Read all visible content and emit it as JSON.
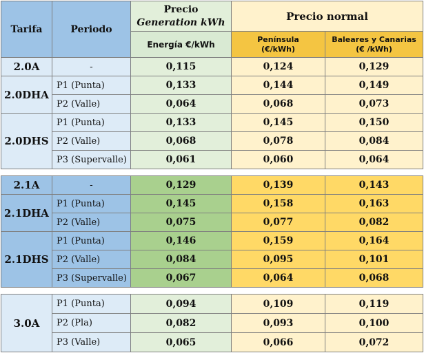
{
  "header": {
    "tarifa": "Tarifa",
    "periodo": "Periodo",
    "precio_gen_line1": "Precio",
    "precio_gen_line2": "Generation kWh",
    "energia": "Energía €/kWh",
    "precio_normal": "Precio normal",
    "peninsula_line1": "Península",
    "peninsula_line2": "(€/kWh)",
    "baleares_line1": "Baleares y Canarias",
    "baleares_line2": "(€ /kWh)"
  },
  "groups": [
    {
      "rows": [
        {
          "tarifa": "2.0A",
          "periodo": "-",
          "gen": "0,115",
          "pen": "0,124",
          "bal": "0,129"
        },
        {
          "tarifa": "2.0DHA",
          "periodo": "P1 (Punta)",
          "gen": "0,133",
          "pen": "0,144",
          "bal": "0,149"
        },
        {
          "tarifa": "",
          "periodo": "P2 (Valle)",
          "gen": "0,064",
          "pen": "0,068",
          "bal": "0,073"
        },
        {
          "tarifa": "2.0DHS",
          "periodo": "P1 (Punta)",
          "gen": "0,133",
          "pen": "0,145",
          "bal": "0,150"
        },
        {
          "tarifa": "",
          "periodo": "P2 (Valle)",
          "gen": "0,068",
          "pen": "0,078",
          "bal": "0,084"
        },
        {
          "tarifa": "",
          "periodo": "P3 (Supervalle)",
          "gen": "0,061",
          "pen": "0,060",
          "bal": "0,064"
        }
      ]
    },
    {
      "rows": [
        {
          "tarifa": "2.1A",
          "periodo": "-",
          "gen": "0,129",
          "pen": "0,139",
          "bal": "0,143"
        },
        {
          "tarifa": "2.1DHA",
          "periodo": "P1 (Punta)",
          "gen": "0,145",
          "pen": "0,158",
          "bal": "0,163"
        },
        {
          "tarifa": "",
          "periodo": "P2 (Valle)",
          "gen": "0,075",
          "pen": "0,077",
          "bal": "0,082"
        },
        {
          "tarifa": "2.1DHS",
          "periodo": "P1 (Punta)",
          "gen": "0,146",
          "pen": "0,159",
          "bal": "0,164"
        },
        {
          "tarifa": "",
          "periodo": "P2 (Valle)",
          "gen": "0,084",
          "pen": "0,095",
          "bal": "0,101"
        },
        {
          "tarifa": "",
          "periodo": "P3 (Supervalle)",
          "gen": "0,067",
          "pen": "0,064",
          "bal": "0,068"
        }
      ]
    },
    {
      "rows": [
        {
          "tarifa": "3.0A",
          "periodo": "P1 (Punta)",
          "gen": "0,094",
          "pen": "0,109",
          "bal": "0,119"
        },
        {
          "tarifa": "",
          "periodo": "P2 (Pla)",
          "gen": "0,082",
          "pen": "0,093",
          "bal": "0,100"
        },
        {
          "tarifa": "",
          "periodo": "P3 (Valle)",
          "gen": "0,065",
          "pen": "0,066",
          "bal": "0,072"
        }
      ]
    }
  ]
}
